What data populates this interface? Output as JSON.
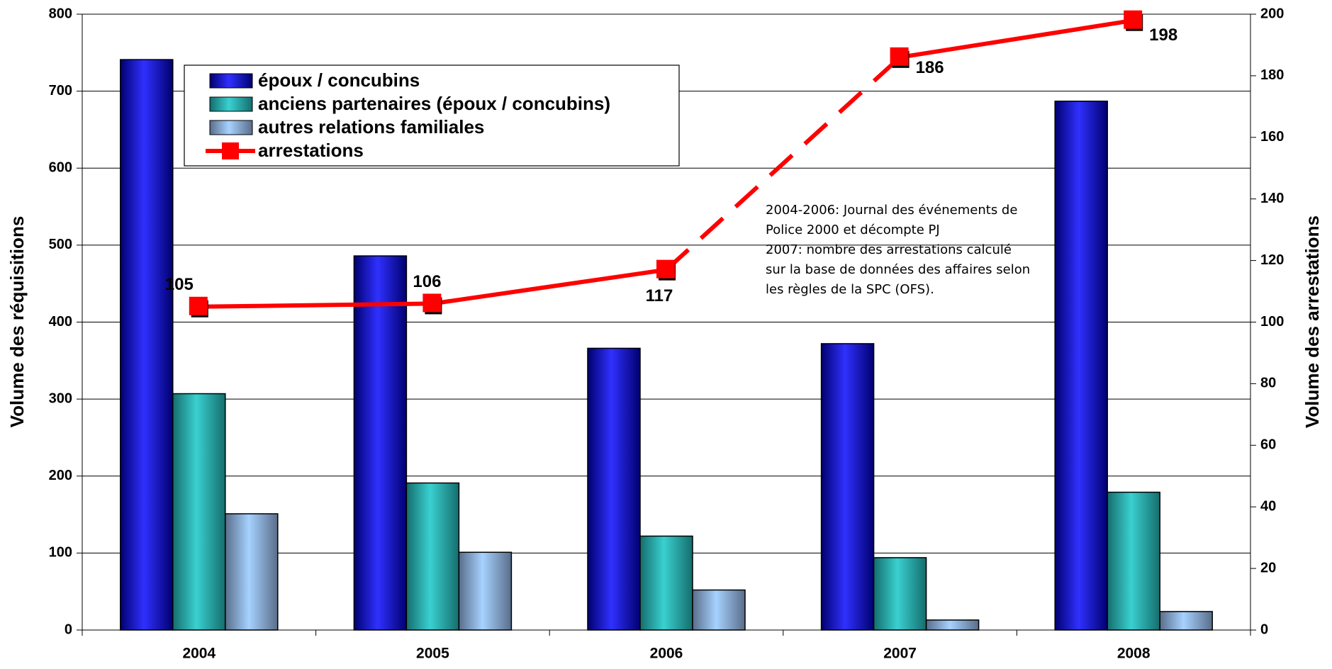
{
  "chart_data": {
    "type": "bar_line",
    "y_label": "Volume des réquisitions",
    "y2_label": "Volume des arrestations",
    "categories": [
      "2004",
      "2005",
      "2006",
      "2007",
      "2008"
    ],
    "series": [
      {
        "name": "époux / concubins",
        "type": "bar",
        "color": "#1010d0",
        "values": [
          741,
          486,
          366,
          372,
          687
        ]
      },
      {
        "name": "anciens partenaires (époux / concubins)",
        "type": "bar",
        "color": "#2ab5b5",
        "values": [
          307,
          191,
          122,
          94,
          179
        ]
      },
      {
        "name": "autres relations familiales",
        "type": "bar",
        "color": "#8fb8ee",
        "values": [
          151,
          101,
          52,
          13,
          24
        ]
      },
      {
        "name": "arrestations",
        "type": "line",
        "axis": "y2",
        "color": "#ff0000",
        "values": [
          105,
          106,
          117,
          186,
          198
        ],
        "segment_styles": [
          "solid",
          "solid",
          "dashed",
          "solid"
        ]
      }
    ],
    "ylim": [
      0,
      800
    ],
    "yticks": [
      0,
      100,
      200,
      300,
      400,
      500,
      600,
      700,
      800
    ],
    "y2lim": [
      0,
      200
    ],
    "y2ticks": [
      0,
      20,
      40,
      60,
      80,
      100,
      120,
      140,
      160,
      180,
      200
    ],
    "grid": true,
    "annotation": [
      "2004-2006: Journal des événements de",
      "Police 2000 et décompte PJ",
      "2007: nombre des arrestations calculé",
      "sur la base de données des affaires selon",
      "les règles de la SPC (OFS)."
    ]
  }
}
